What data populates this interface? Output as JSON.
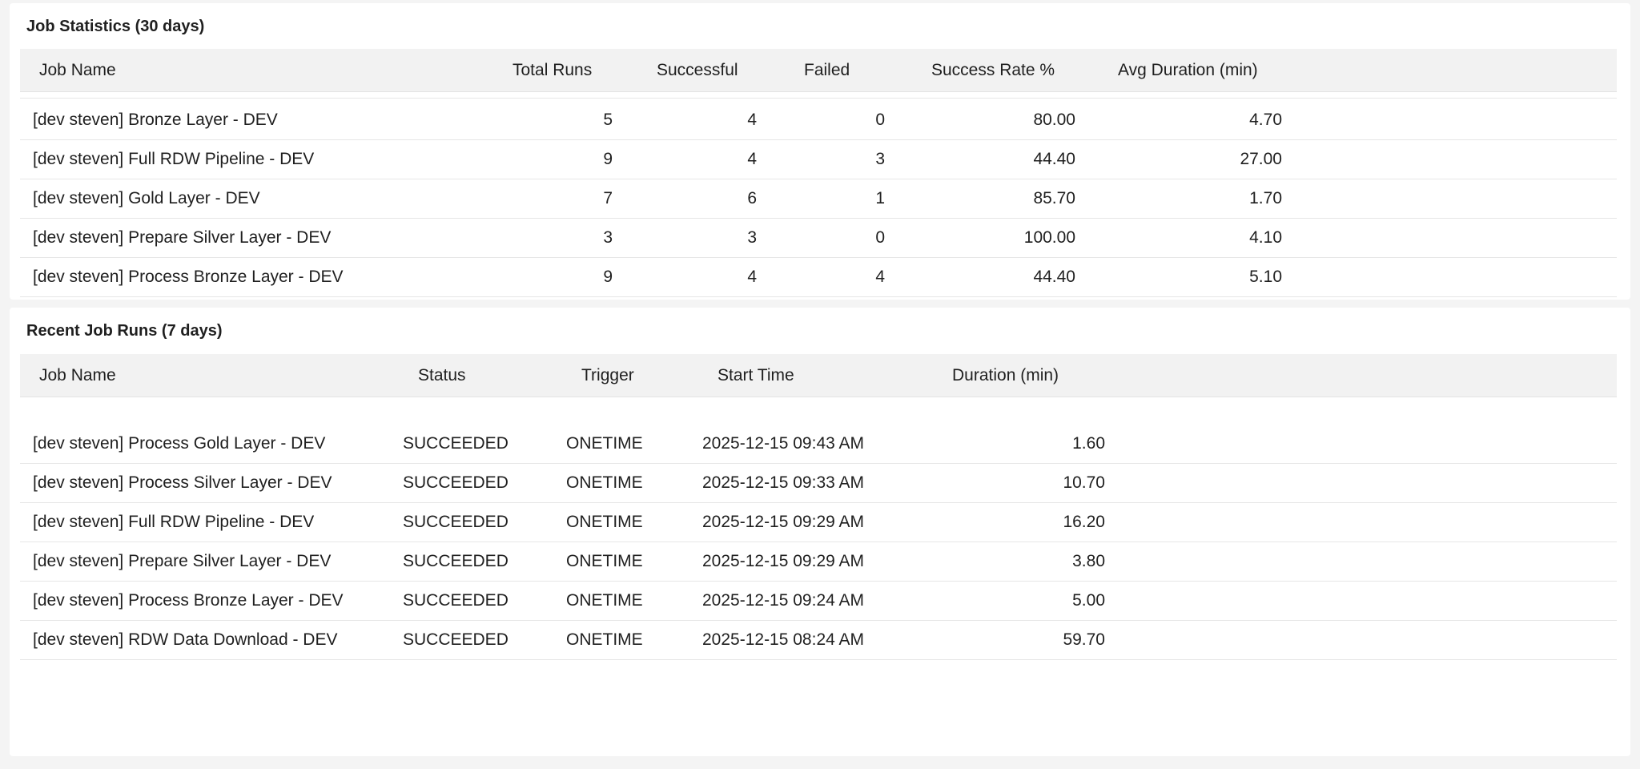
{
  "job_statistics": {
    "title": "Job Statistics (30 days)",
    "columns": [
      "Job Name",
      "Total Runs",
      "Successful",
      "Failed",
      "Success Rate %",
      "Avg Duration (min)"
    ],
    "rows": [
      {
        "job_name": "[dev steven] Bronze Layer - DEV",
        "total_runs": "5",
        "successful": "4",
        "failed": "0",
        "success_rate": "80.00",
        "avg_duration": "4.70"
      },
      {
        "job_name": "[dev steven] Full RDW Pipeline - DEV",
        "total_runs": "9",
        "successful": "4",
        "failed": "3",
        "success_rate": "44.40",
        "avg_duration": "27.00"
      },
      {
        "job_name": "[dev steven] Gold Layer - DEV",
        "total_runs": "7",
        "successful": "6",
        "failed": "1",
        "success_rate": "85.70",
        "avg_duration": "1.70"
      },
      {
        "job_name": "[dev steven] Prepare Silver Layer - DEV",
        "total_runs": "3",
        "successful": "3",
        "failed": "0",
        "success_rate": "100.00",
        "avg_duration": "4.10"
      },
      {
        "job_name": "[dev steven] Process Bronze Layer - DEV",
        "total_runs": "9",
        "successful": "4",
        "failed": "4",
        "success_rate": "44.40",
        "avg_duration": "5.10"
      }
    ]
  },
  "recent_runs": {
    "title": "Recent Job Runs (7 days)",
    "columns": [
      "Job Name",
      "Status",
      "Trigger",
      "Start Time",
      "Duration (min)"
    ],
    "rows": [
      {
        "job_name": "[dev steven] Process Gold Layer - DEV",
        "status": "SUCCEEDED",
        "trigger": "ONETIME",
        "start_time": "2025-12-15 09:43 AM",
        "duration": "1.60"
      },
      {
        "job_name": "[dev steven] Process Silver Layer - DEV",
        "status": "SUCCEEDED",
        "trigger": "ONETIME",
        "start_time": "2025-12-15 09:33 AM",
        "duration": "10.70"
      },
      {
        "job_name": "[dev steven] Full RDW Pipeline - DEV",
        "status": "SUCCEEDED",
        "trigger": "ONETIME",
        "start_time": "2025-12-15 09:29 AM",
        "duration": "16.20"
      },
      {
        "job_name": "[dev steven] Prepare Silver Layer - DEV",
        "status": "SUCCEEDED",
        "trigger": "ONETIME",
        "start_time": "2025-12-15 09:29 AM",
        "duration": "3.80"
      },
      {
        "job_name": "[dev steven] Process Bronze Layer - DEV",
        "status": "SUCCEEDED",
        "trigger": "ONETIME",
        "start_time": "2025-12-15 09:24 AM",
        "duration": "5.00"
      },
      {
        "job_name": "[dev steven] RDW Data Download - DEV",
        "status": "SUCCEEDED",
        "trigger": "ONETIME",
        "start_time": "2025-12-15 08:24 AM",
        "duration": "59.70"
      }
    ]
  }
}
